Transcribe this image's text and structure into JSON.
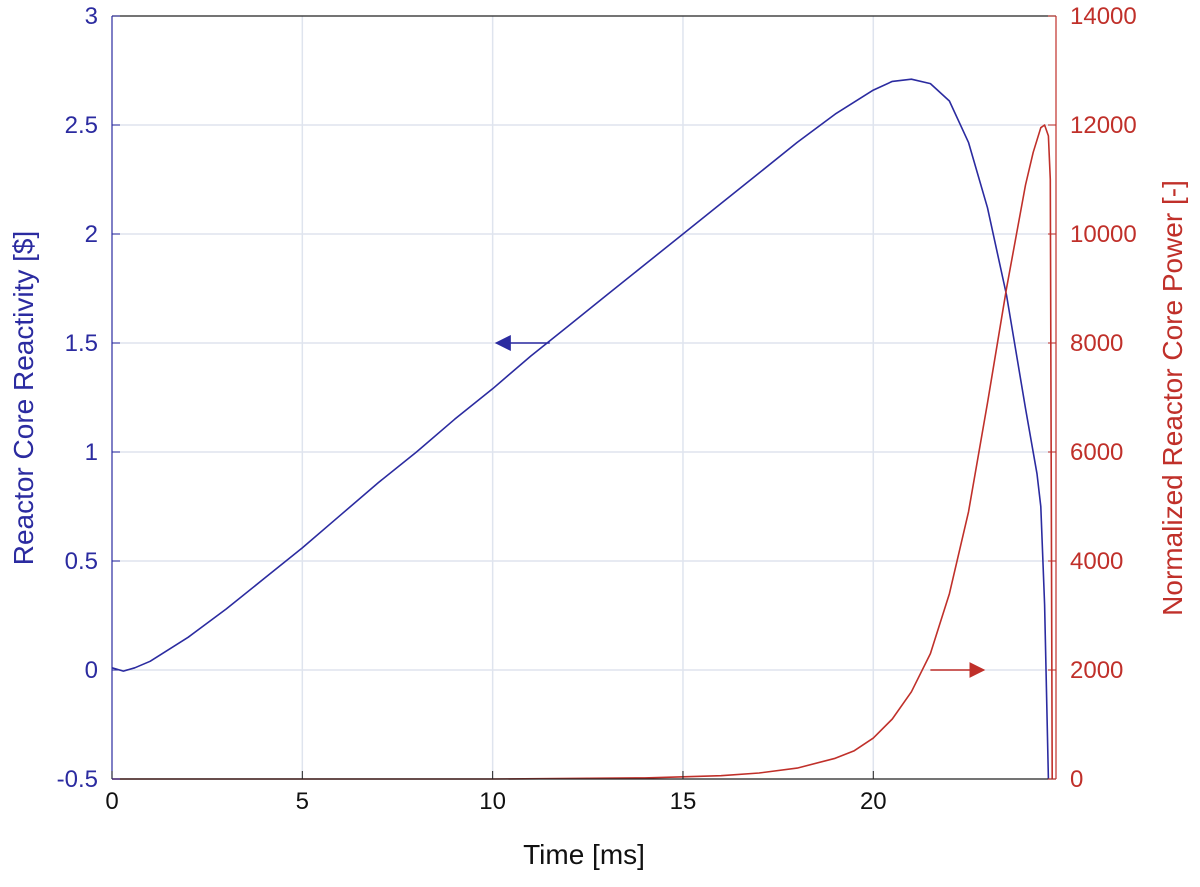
{
  "chart_data": {
    "type": "line",
    "title": "",
    "xlabel": "Time [ms]",
    "ylabel_left": "Reactor Core Reactivity [$]",
    "ylabel_right": "Normalized Reactor Core Power [-]",
    "xlim": [
      0,
      24.8
    ],
    "ylim_left": [
      -0.5,
      3
    ],
    "ylim_right": [
      0,
      14000
    ],
    "x_ticks": [
      "0",
      "5",
      "10",
      "15",
      "20"
    ],
    "x_tick_values": [
      0,
      5,
      10,
      15,
      20
    ],
    "y_ticks_left": [
      "-0.5",
      "0",
      "0.5",
      "1",
      "1.5",
      "2",
      "2.5",
      "3"
    ],
    "y_tick_values_left": [
      -0.5,
      0,
      0.5,
      1,
      1.5,
      2,
      2.5,
      3
    ],
    "y_ticks_right": [
      "0",
      "2000",
      "4000",
      "6000",
      "8000",
      "10000",
      "12000",
      "14000"
    ],
    "y_tick_values_right": [
      0,
      2000,
      4000,
      6000,
      8000,
      10000,
      12000,
      14000
    ],
    "grid": true,
    "colors": {
      "left": "#2b2ba0",
      "right": "#c0302a",
      "grid": "#dfe4ee",
      "axis": "#222222"
    },
    "series": [
      {
        "axis": "left",
        "color": "#2b2ba0",
        "x": [
          0,
          0.1,
          0.3,
          0.6,
          1,
          2,
          3,
          4,
          5,
          6,
          7,
          8,
          9,
          10,
          11,
          12,
          13,
          14,
          15,
          16,
          17,
          18,
          19,
          20,
          20.5,
          21,
          21.5,
          22,
          22.5,
          23,
          23.5,
          24,
          24.3,
          24.4,
          24.5,
          24.55,
          24.6
        ],
        "y": [
          0.01,
          0.005,
          -0.005,
          0.01,
          0.04,
          0.15,
          0.28,
          0.42,
          0.56,
          0.71,
          0.86,
          1.0,
          1.15,
          1.29,
          1.44,
          1.58,
          1.72,
          1.86,
          2.0,
          2.14,
          2.28,
          2.42,
          2.55,
          2.66,
          2.7,
          2.71,
          2.69,
          2.61,
          2.42,
          2.12,
          1.72,
          1.2,
          0.9,
          0.75,
          0.3,
          -0.1,
          -0.5
        ]
      },
      {
        "axis": "right",
        "color": "#c0302a",
        "x": [
          0,
          5,
          10,
          14,
          16,
          17,
          18,
          19,
          19.5,
          20,
          20.5,
          21,
          21.5,
          22,
          22.5,
          23,
          23.5,
          24,
          24.2,
          24.4,
          24.5,
          24.6,
          24.65,
          24.7
        ],
        "y": [
          0,
          0,
          0,
          20,
          60,
          110,
          200,
          380,
          520,
          750,
          1100,
          1600,
          2300,
          3400,
          4900,
          6900,
          9000,
          10900,
          11500,
          11950,
          12000,
          11800,
          11000,
          0
        ]
      }
    ],
    "annotations": [
      {
        "text": "arrow-left",
        "x": 11.5,
        "y": 1.5,
        "axis": "left",
        "direction": "left",
        "length": 1.4
      },
      {
        "text": "arrow-right",
        "x": 21.5,
        "y": 2000,
        "axis": "right",
        "direction": "right",
        "length": 1.4
      }
    ]
  }
}
